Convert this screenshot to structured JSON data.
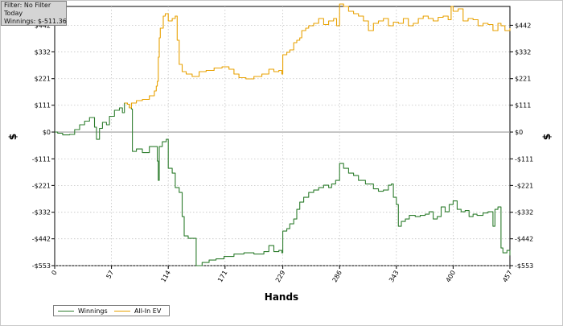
{
  "info": {
    "filter": "Filter: No Filter",
    "period": "Today",
    "winnings": "Winnings: $-511.36"
  },
  "chart_data": {
    "type": "line",
    "xlabel": "Hands",
    "ylabel": "$",
    "xlim": [
      0,
      457
    ],
    "ylim": [
      -553,
      520
    ],
    "x_ticks": [
      0,
      57,
      114,
      171,
      229,
      286,
      343,
      400,
      457
    ],
    "y_ticks": [
      -553,
      -442,
      -332,
      -221,
      -111,
      0,
      111,
      221,
      332,
      442
    ],
    "y_tick_labels": [
      "-$553",
      "-$442",
      "-$332",
      "-$221",
      "-$111",
      "$0",
      "$111",
      "$221",
      "$332",
      "$442"
    ],
    "grid": true,
    "legend_position": "bottom-left",
    "series": [
      {
        "name": "Winnings",
        "color": "#2e7d2e",
        "points": [
          [
            0,
            0
          ],
          [
            3,
            -5
          ],
          [
            8,
            -12
          ],
          [
            15,
            -10
          ],
          [
            20,
            10
          ],
          [
            25,
            30
          ],
          [
            30,
            45
          ],
          [
            35,
            60
          ],
          [
            40,
            20
          ],
          [
            42,
            -30
          ],
          [
            45,
            15
          ],
          [
            48,
            40
          ],
          [
            52,
            30
          ],
          [
            55,
            65
          ],
          [
            60,
            90
          ],
          [
            65,
            100
          ],
          [
            68,
            80
          ],
          [
            70,
            120
          ],
          [
            73,
            115
          ],
          [
            75,
            100
          ],
          [
            77,
            95
          ],
          [
            78,
            -80
          ],
          [
            82,
            -70
          ],
          [
            88,
            -85
          ],
          [
            95,
            -60
          ],
          [
            100,
            -60
          ],
          [
            103,
            -120
          ],
          [
            104,
            -200
          ],
          [
            105,
            -60
          ],
          [
            108,
            -40
          ],
          [
            112,
            -30
          ],
          [
            114,
            -150
          ],
          [
            118,
            -170
          ],
          [
            121,
            -230
          ],
          [
            125,
            -250
          ],
          [
            128,
            -350
          ],
          [
            130,
            -430
          ],
          [
            134,
            -440
          ],
          [
            138,
            -440
          ],
          [
            142,
            -553
          ],
          [
            148,
            -540
          ],
          [
            155,
            -530
          ],
          [
            162,
            -525
          ],
          [
            170,
            -515
          ],
          [
            180,
            -505
          ],
          [
            190,
            -500
          ],
          [
            200,
            -505
          ],
          [
            210,
            -495
          ],
          [
            215,
            -470
          ],
          [
            220,
            -495
          ],
          [
            225,
            -490
          ],
          [
            228,
            -500
          ],
          [
            229,
            -410
          ],
          [
            233,
            -400
          ],
          [
            236,
            -380
          ],
          [
            240,
            -360
          ],
          [
            243,
            -320
          ],
          [
            246,
            -290
          ],
          [
            250,
            -270
          ],
          [
            255,
            -250
          ],
          [
            260,
            -240
          ],
          [
            265,
            -230
          ],
          [
            270,
            -220
          ],
          [
            275,
            -230
          ],
          [
            278,
            -215
          ],
          [
            282,
            -200
          ],
          [
            286,
            -130
          ],
          [
            290,
            -150
          ],
          [
            295,
            -170
          ],
          [
            300,
            -180
          ],
          [
            305,
            -200
          ],
          [
            312,
            -215
          ],
          [
            320,
            -235
          ],
          [
            325,
            -245
          ],
          [
            330,
            -240
          ],
          [
            335,
            -220
          ],
          [
            338,
            -215
          ],
          [
            340,
            -270
          ],
          [
            343,
            -300
          ],
          [
            345,
            -390
          ],
          [
            348,
            -370
          ],
          [
            352,
            -360
          ],
          [
            356,
            -345
          ],
          [
            362,
            -350
          ],
          [
            367,
            -345
          ],
          [
            372,
            -340
          ],
          [
            376,
            -330
          ],
          [
            380,
            -360
          ],
          [
            384,
            -350
          ],
          [
            388,
            -310
          ],
          [
            392,
            -330
          ],
          [
            396,
            -300
          ],
          [
            400,
            -285
          ],
          [
            404,
            -320
          ],
          [
            408,
            -330
          ],
          [
            412,
            -325
          ],
          [
            416,
            -350
          ],
          [
            420,
            -340
          ],
          [
            424,
            -345
          ],
          [
            430,
            -335
          ],
          [
            435,
            -330
          ],
          [
            440,
            -390
          ],
          [
            442,
            -320
          ],
          [
            445,
            -310
          ],
          [
            448,
            -480
          ],
          [
            450,
            -500
          ],
          [
            454,
            -490
          ],
          [
            457,
            -511
          ]
        ]
      },
      {
        "name": "All-In EV",
        "color": "#e8a100",
        "points": [
          [
            70,
            120
          ],
          [
            73,
            115
          ],
          [
            75,
            100
          ],
          [
            77,
            120
          ],
          [
            82,
            130
          ],
          [
            88,
            135
          ],
          [
            95,
            150
          ],
          [
            100,
            170
          ],
          [
            102,
            190
          ],
          [
            103,
            210
          ],
          [
            104,
            310
          ],
          [
            105,
            390
          ],
          [
            106,
            430
          ],
          [
            109,
            480
          ],
          [
            111,
            490
          ],
          [
            114,
            460
          ],
          [
            118,
            470
          ],
          [
            121,
            480
          ],
          [
            123,
            380
          ],
          [
            125,
            280
          ],
          [
            128,
            250
          ],
          [
            132,
            240
          ],
          [
            138,
            230
          ],
          [
            145,
            250
          ],
          [
            152,
            255
          ],
          [
            160,
            265
          ],
          [
            168,
            270
          ],
          [
            175,
            260
          ],
          [
            180,
            240
          ],
          [
            185,
            225
          ],
          [
            192,
            220
          ],
          [
            200,
            230
          ],
          [
            208,
            240
          ],
          [
            215,
            260
          ],
          [
            220,
            250
          ],
          [
            225,
            255
          ],
          [
            228,
            240
          ],
          [
            229,
            320
          ],
          [
            233,
            330
          ],
          [
            236,
            340
          ],
          [
            240,
            370
          ],
          [
            243,
            380
          ],
          [
            246,
            390
          ],
          [
            248,
            420
          ],
          [
            252,
            430
          ],
          [
            255,
            440
          ],
          [
            260,
            450
          ],
          [
            265,
            470
          ],
          [
            270,
            445
          ],
          [
            275,
            460
          ],
          [
            280,
            470
          ],
          [
            283,
            440
          ],
          [
            286,
            530
          ],
          [
            290,
            520
          ],
          [
            295,
            500
          ],
          [
            300,
            490
          ],
          [
            305,
            480
          ],
          [
            310,
            460
          ],
          [
            315,
            420
          ],
          [
            320,
            450
          ],
          [
            325,
            460
          ],
          [
            330,
            470
          ],
          [
            335,
            440
          ],
          [
            340,
            455
          ],
          [
            345,
            450
          ],
          [
            350,
            470
          ],
          [
            355,
            440
          ],
          [
            360,
            450
          ],
          [
            365,
            470
          ],
          [
            370,
            480
          ],
          [
            375,
            470
          ],
          [
            380,
            460
          ],
          [
            385,
            475
          ],
          [
            390,
            480
          ],
          [
            395,
            465
          ],
          [
            398,
            520
          ],
          [
            400,
            500
          ],
          [
            405,
            510
          ],
          [
            410,
            460
          ],
          [
            415,
            470
          ],
          [
            420,
            465
          ],
          [
            425,
            440
          ],
          [
            430,
            450
          ],
          [
            435,
            445
          ],
          [
            440,
            420
          ],
          [
            445,
            450
          ],
          [
            448,
            440
          ],
          [
            452,
            420
          ],
          [
            457,
            430
          ]
        ]
      }
    ]
  }
}
